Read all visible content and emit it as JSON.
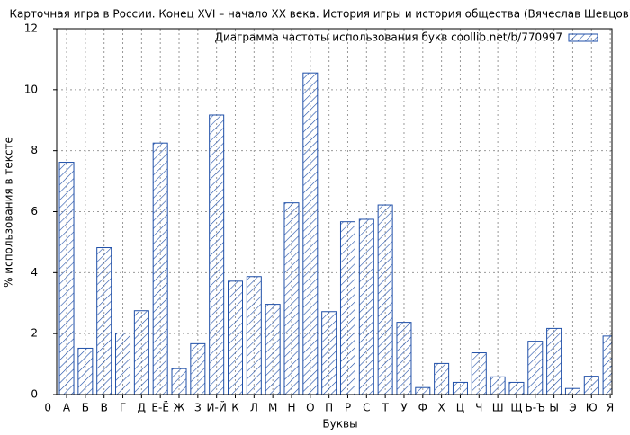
{
  "chart_data": {
    "type": "bar",
    "title": "Карточная игра в России. Конец XVI – начало XX века. История игры и история общества (Вячеслав Шевцов)",
    "legend": "Диаграмма частоты использования букв coollib.net/b/770997",
    "legend_position": "upper right",
    "x_label": "Буквы",
    "y_label": "% использования в тексте",
    "color": "#1f4fa8",
    "hatch": true,
    "grid": true,
    "categories": [
      "0",
      "А",
      "Б",
      "В",
      "Г",
      "Д",
      "Е-Ё",
      "Ж",
      "З",
      "И-Й",
      "К",
      "Л",
      "М",
      "Н",
      "О",
      "П",
      "Р",
      "С",
      "Т",
      "У",
      "Ф",
      "Х",
      "Ц",
      "Ч",
      "Ш",
      "Щ",
      "Ь-Ъ",
      "Ы",
      "Э",
      "Ю",
      "Я"
    ],
    "values": [
      null,
      7.62,
      1.52,
      4.82,
      2.02,
      2.75,
      8.25,
      0.85,
      1.67,
      9.17,
      3.72,
      3.87,
      2.96,
      6.29,
      10.55,
      2.72,
      5.67,
      5.75,
      6.22,
      2.37,
      0.23,
      1.02,
      0.4,
      1.37,
      0.58,
      0.4,
      1.75,
      2.17,
      0.2,
      0.6,
      1.92
    ],
    "ylim": [
      0,
      12
    ],
    "yticks": [
      0,
      2,
      4,
      6,
      8,
      10,
      12
    ]
  }
}
